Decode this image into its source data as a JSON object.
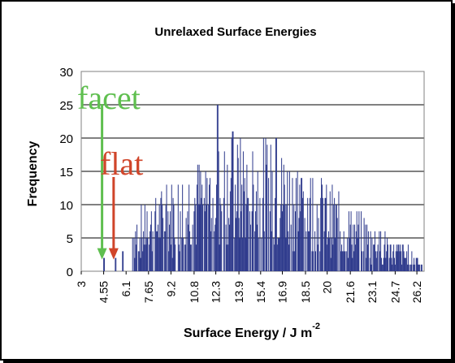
{
  "chart_data": {
    "type": "bar",
    "title": "Unrelaxed Surface Energies",
    "xlabel": "Surface Energy / J m",
    "xlabel_superscript": "-2",
    "ylabel": "Frequency",
    "ylim": [
      0,
      30
    ],
    "yticks": [
      0,
      5,
      10,
      15,
      20,
      25,
      30
    ],
    "xlim": [
      3,
      26.7
    ],
    "xticks": [
      "3",
      "4.55",
      "6.1",
      "7.65",
      "9.2",
      "10.8",
      "12.3",
      "13.9",
      "15.4",
      "16.9",
      "18.5",
      "20",
      "21.6",
      "23.1",
      "24.7",
      "26.2"
    ],
    "grid": true,
    "legend": "none",
    "bar_color": "#2e3a8c",
    "annotations": [
      {
        "text": "facet",
        "color": "#5fbf4f",
        "x": 4.55,
        "y": 2.0
      },
      {
        "text": "flat",
        "color": "#d0452a",
        "x": 5.35,
        "y": 2.0
      }
    ]
  }
}
